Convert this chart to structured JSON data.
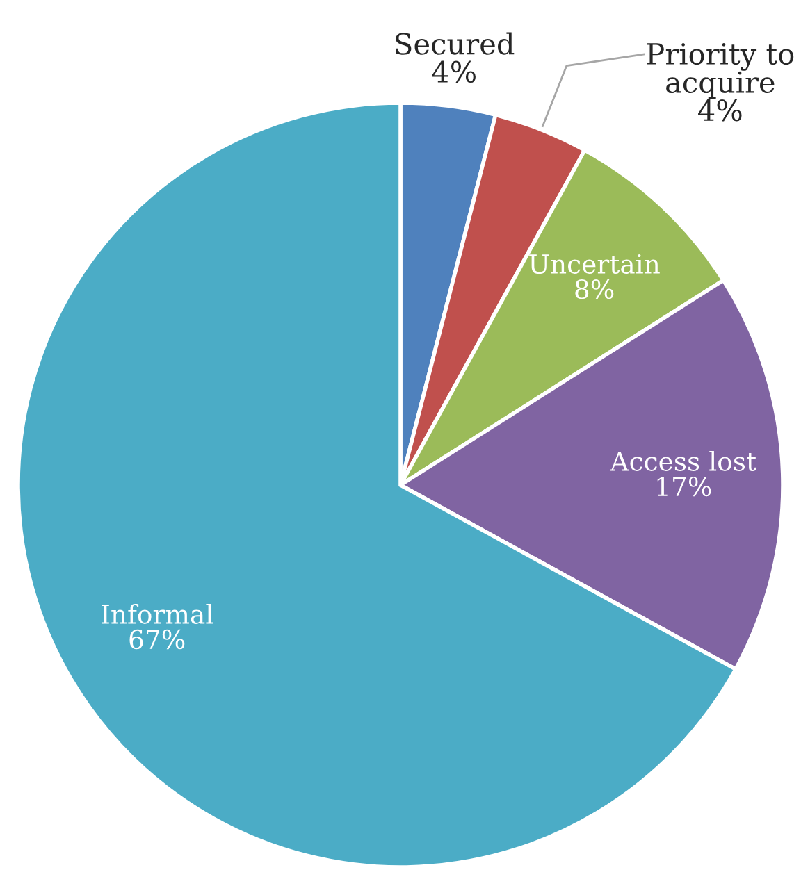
{
  "chart_data": {
    "type": "pie",
    "categories": [
      "Secured",
      "Priority to\nacquire",
      "Uncertain",
      "Access lost",
      "Informal"
    ],
    "values": [
      4,
      4,
      8,
      17,
      67
    ],
    "value_labels": [
      "4%",
      "4%",
      "8%",
      "17%",
      "67%"
    ],
    "colors": [
      "#4f81bd",
      "#c0504d",
      "#9bbb59",
      "#8064a2",
      "#4bacc6"
    ]
  }
}
